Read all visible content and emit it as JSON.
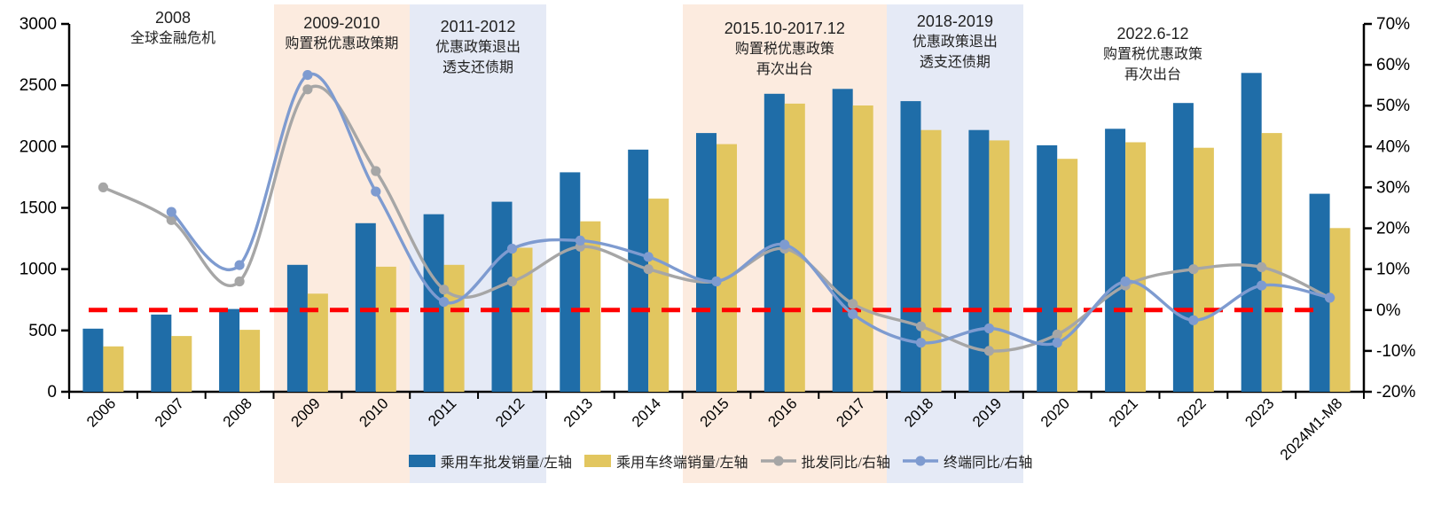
{
  "chart_data": {
    "type": "combo-bar-line",
    "unit_note": "left axis in 万辆 (implied), right axis percent YoY",
    "categories": [
      "2006",
      "2007",
      "2008",
      "2009",
      "2010",
      "2011",
      "2012",
      "2013",
      "2014",
      "2015",
      "2016",
      "2017",
      "2018",
      "2019",
      "2020",
      "2021",
      "2022",
      "2023",
      "2024M1-M8"
    ],
    "series": [
      {
        "name": "乘用车批发销量/左轴",
        "type": "bar",
        "axis": "left",
        "color": "#1F6DA8",
        "values": [
          515,
          630,
          675,
          1035,
          1375,
          1448,
          1550,
          1790,
          1975,
          2110,
          2430,
          2470,
          2370,
          2135,
          2010,
          2145,
          2355,
          2600,
          1615
        ]
      },
      {
        "name": "乘用车终端销量/左轴",
        "type": "bar",
        "axis": "left",
        "color": "#E2C65F",
        "values": [
          370,
          455,
          505,
          800,
          1020,
          1035,
          1175,
          1390,
          1575,
          2020,
          2350,
          2335,
          2135,
          2050,
          1900,
          2035,
          1990,
          2110,
          1335
        ]
      },
      {
        "name": "批发同比/右轴",
        "type": "line",
        "axis": "right",
        "color": "#A6A6A6",
        "values": [
          30,
          22,
          7,
          54,
          34,
          5,
          7,
          15.5,
          10,
          7,
          15,
          1.5,
          -4,
          -10,
          -6,
          6,
          10,
          10.5,
          3
        ]
      },
      {
        "name": "终端同比/右轴",
        "type": "line",
        "axis": "right",
        "color": "#7E9BD0",
        "values": [
          null,
          24,
          11,
          57.5,
          29,
          2,
          15,
          17,
          13,
          7,
          16,
          -1,
          -8,
          -4.5,
          -8,
          7,
          -2.5,
          6,
          3
        ]
      }
    ],
    "left_axis": {
      "min": 0,
      "max": 3000,
      "step": 500,
      "ticks": [
        "0",
        "500",
        "1000",
        "1500",
        "2000",
        "2500",
        "3000"
      ]
    },
    "right_axis": {
      "min": -20,
      "max": 70,
      "step": 10,
      "ticks": [
        "-20%",
        "-10%",
        "0%",
        "10%",
        "20%",
        "30%",
        "40%",
        "50%",
        "60%",
        "70%"
      ]
    },
    "zero_growth_line": {
      "value_pct": 0,
      "color": "#FF0000",
      "style": "dashed"
    },
    "bands": [
      {
        "name": "band-2009-2010",
        "color": "#FCEBDF",
        "from": "2009",
        "to": "2010"
      },
      {
        "name": "band-2011-2012",
        "color": "#E5EAF6",
        "from": "2011",
        "to": "2012"
      },
      {
        "name": "band-2015-2017",
        "color": "#FCEBDF",
        "from": "2015",
        "to": "2017"
      },
      {
        "name": "band-2018-2019",
        "color": "#E5EAF6",
        "from": "2018",
        "to": "2019"
      }
    ],
    "annotations": [
      {
        "lines": [
          "2008",
          "全球金融危机"
        ]
      },
      {
        "lines": [
          "2009-2010",
          "购置税优惠政策期"
        ]
      },
      {
        "lines": [
          "2011-2012",
          "优惠政策退出",
          "透支还债期"
        ]
      },
      {
        "lines": [
          "2015.10-2017.12",
          "购置税优惠政策",
          "再次出台"
        ]
      },
      {
        "lines": [
          "2018-2019",
          "优惠政策退出",
          "透支还债期"
        ]
      },
      {
        "lines": [
          "2022.6-12",
          "购置税优惠政策",
          "再次出台"
        ]
      }
    ],
    "legend_position": "bottom-center",
    "grid": false
  }
}
